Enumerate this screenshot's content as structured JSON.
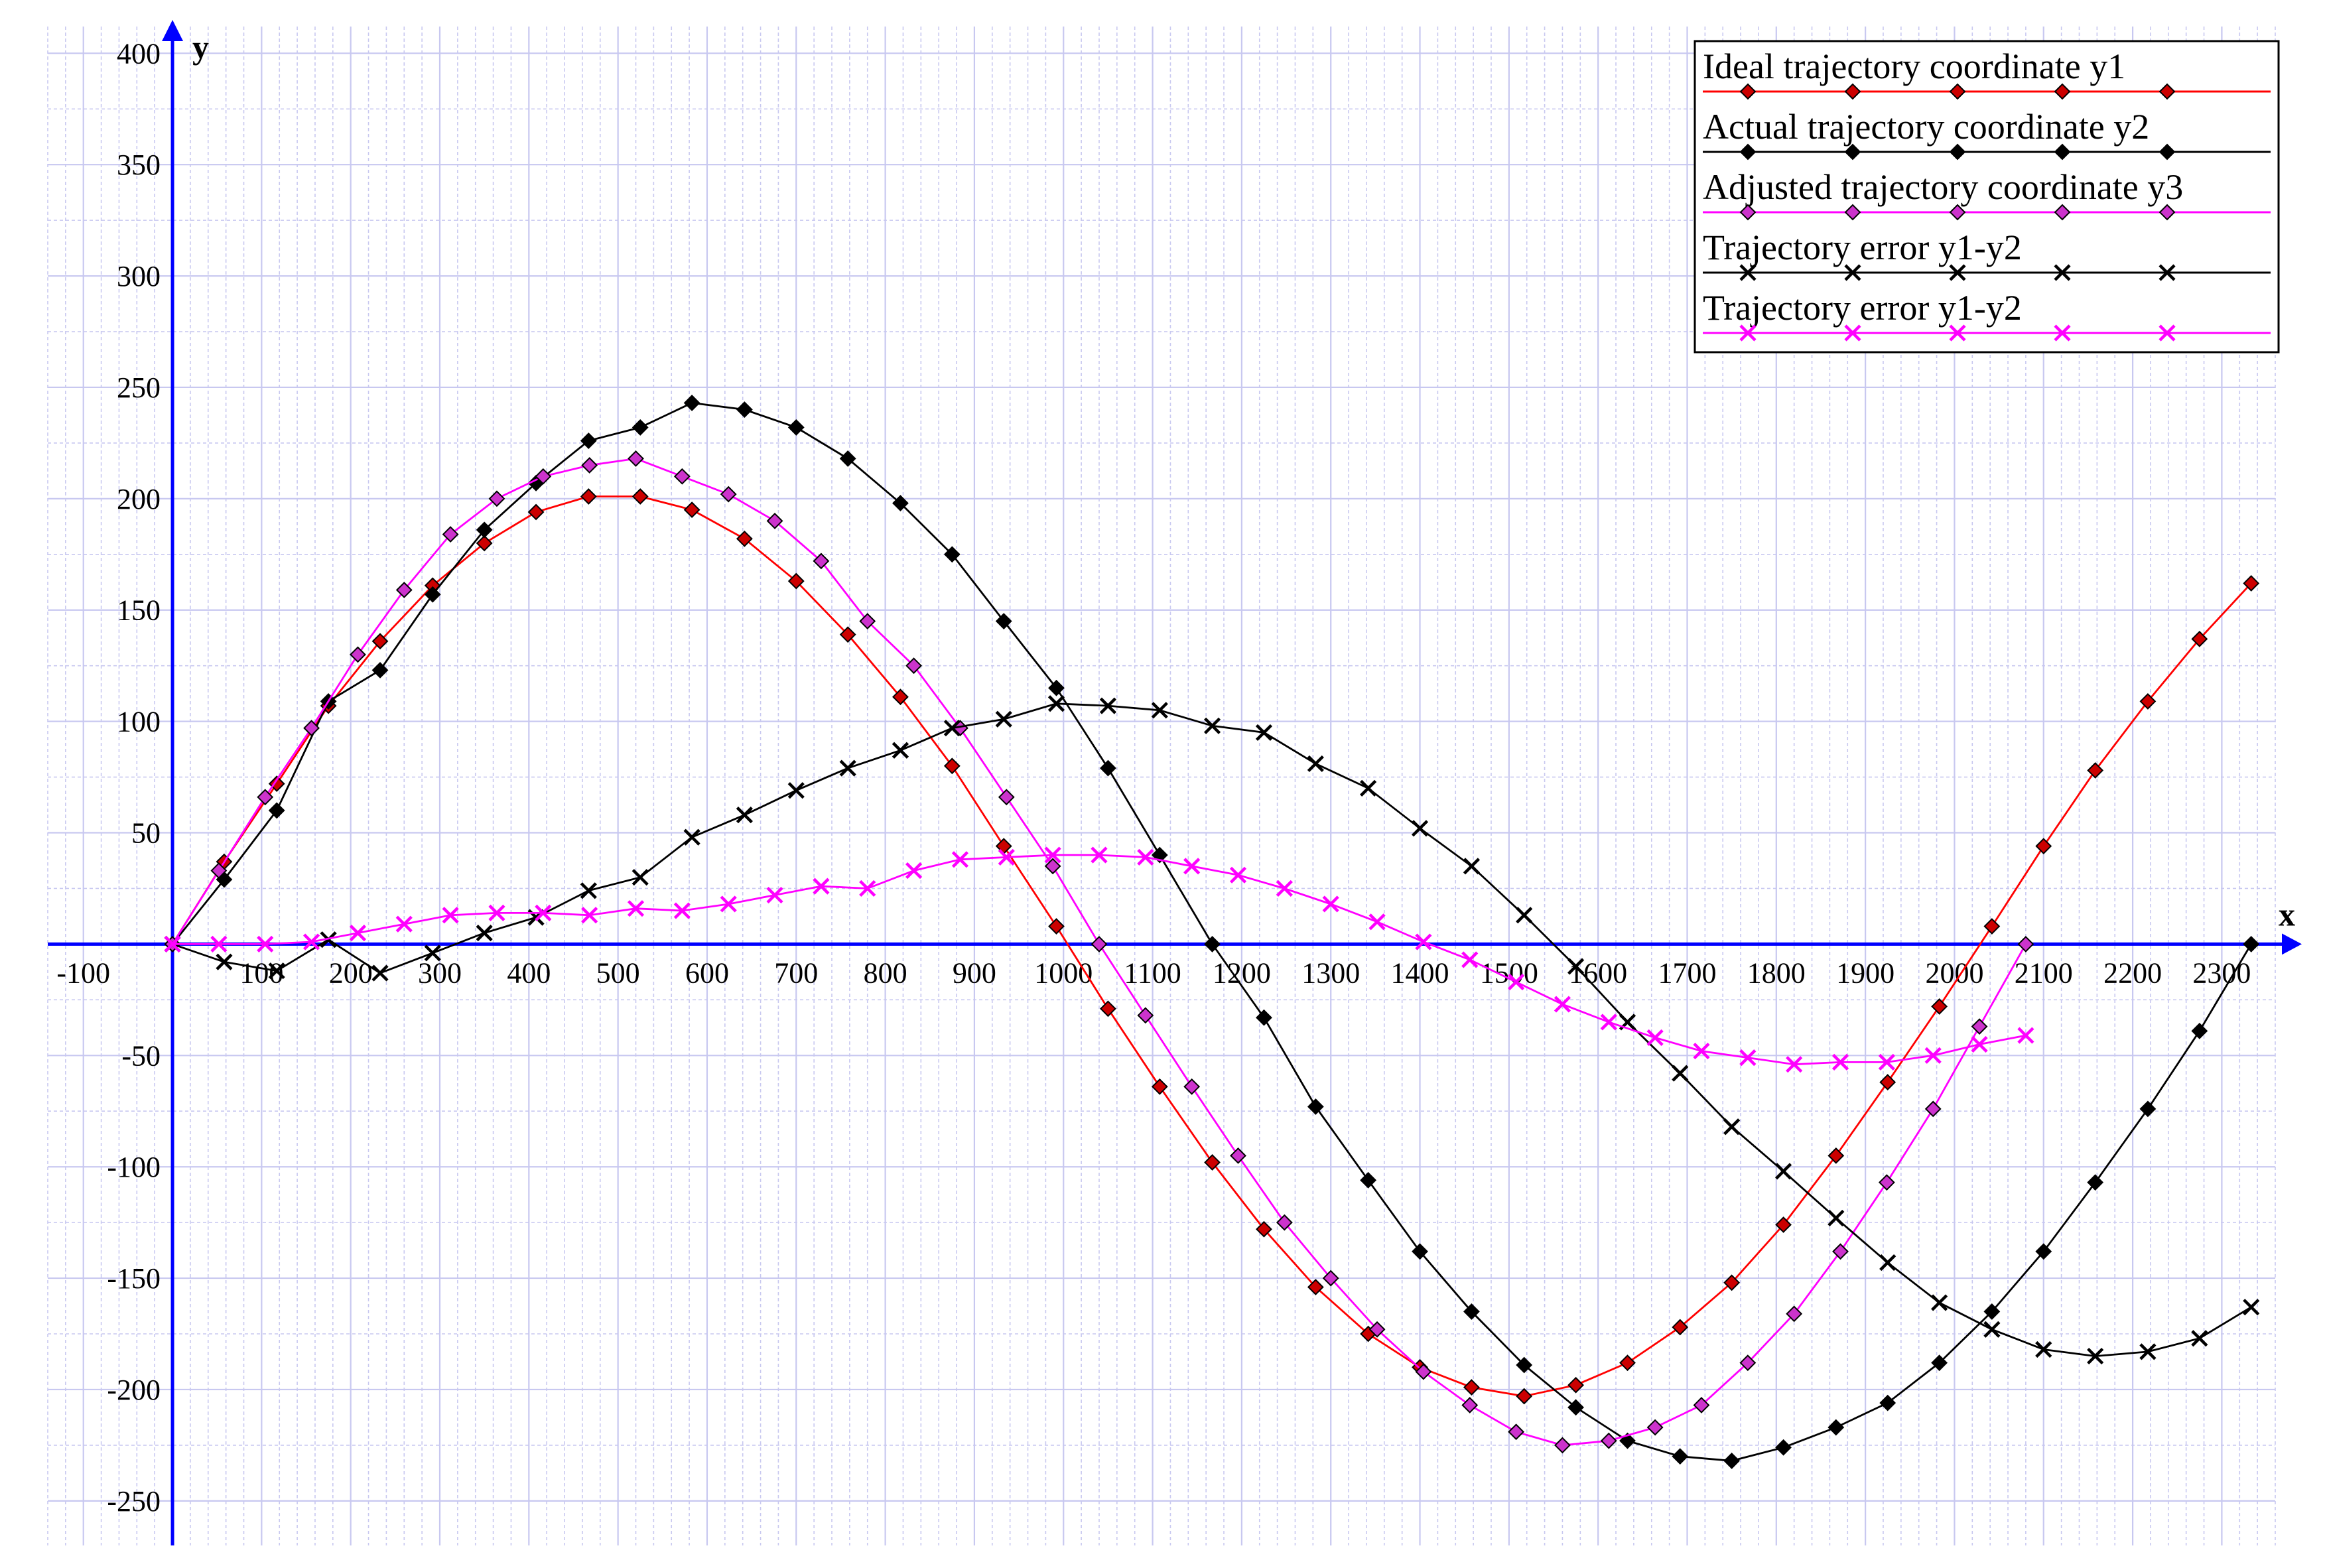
{
  "chart_data": {
    "type": "line",
    "xlabel": "x",
    "ylabel": "y",
    "xlim": [
      -140,
      2360
    ],
    "ylim": [
      -270,
      412
    ],
    "grid": true,
    "grid_minor_x": 20,
    "grid_minor_y": 25,
    "x_ticks": [
      -100,
      100,
      200,
      300,
      400,
      500,
      600,
      700,
      800,
      900,
      1000,
      1100,
      1200,
      1300,
      1400,
      1500,
      1600,
      1700,
      1800,
      1900,
      2000,
      2100,
      2200,
      2300
    ],
    "x_tick_labels": [
      "-100",
      "100",
      "200",
      "300",
      "400",
      "500",
      "600",
      "700",
      "800",
      "900",
      "1000",
      "1100",
      "1200",
      "1300",
      "1400",
      "1500",
      "1600",
      "1700",
      "1800",
      "1900",
      "2000",
      "2100",
      "2200",
      "2300"
    ],
    "y_ticks": [
      400,
      350,
      300,
      250,
      200,
      150,
      100,
      50,
      -50,
      -100,
      -150,
      -200,
      -250
    ],
    "y_tick_labels": [
      "400",
      "350",
      "300",
      "250",
      "200",
      "150",
      "100",
      "50",
      "-50",
      "-100",
      "-150",
      "-200",
      "-250"
    ],
    "legend_position": "top-right",
    "colors": {
      "axis": "#0000ff",
      "grid": "#c8c8f0",
      "red": "#ff0000",
      "red_marker": "#cc0000",
      "black": "#000000",
      "magenta": "#ff00ff",
      "magenta_marker": "#cc33cc"
    },
    "series": [
      {
        "name": "Ideal trajectory coordinate y1",
        "color": "#ff0000",
        "marker": "diamond",
        "marker_color": "#cc0000",
        "x": [
          0,
          58,
          117,
          175,
          233,
          292,
          350,
          408,
          467,
          525,
          583,
          642,
          700,
          758,
          817,
          875,
          933,
          992,
          1050,
          1108,
          1167,
          1225,
          1283,
          1342,
          1400,
          1458,
          1517,
          1575,
          1633,
          1692,
          1750,
          1808,
          1867,
          1925,
          1983,
          2042,
          2100,
          2158,
          2217,
          2275,
          2333
        ],
        "y": [
          0,
          37,
          72,
          107,
          136,
          161,
          180,
          194,
          201,
          201,
          195,
          182,
          163,
          139,
          111,
          80,
          44,
          8,
          -29,
          -64,
          -98,
          -128,
          -154,
          -175,
          -190,
          -199,
          -203,
          -198,
          -188,
          -172,
          -152,
          -126,
          -95,
          -62,
          -28,
          8,
          44,
          78,
          109,
          137,
          162
        ]
      },
      {
        "name": "Actual trajectory coordinate y2",
        "color": "#000000",
        "marker": "diamond",
        "marker_color": "#000000",
        "x": [
          0,
          58,
          117,
          175,
          233,
          292,
          350,
          408,
          467,
          525,
          583,
          642,
          700,
          758,
          817,
          875,
          933,
          992,
          1050,
          1108,
          1167,
          1225,
          1283,
          1342,
          1400,
          1458,
          1517,
          1575,
          1633,
          1692,
          1750,
          1808,
          1867,
          1925,
          1983,
          2042,
          2100,
          2158,
          2217,
          2275,
          2333
        ],
        "y": [
          0,
          29,
          60,
          109,
          123,
          157,
          186,
          207,
          226,
          232,
          243,
          240,
          232,
          218,
          198,
          175,
          145,
          115,
          79,
          40,
          0,
          -33,
          -73,
          -106,
          -138,
          -165,
          -189,
          -208,
          -223,
          -230,
          -232,
          -226,
          -217,
          -206,
          -188,
          -165,
          -138,
          -107,
          -74,
          -39,
          0
        ]
      },
      {
        "name": "Adjusted trajectory coordinate y3",
        "color": "#ff00ff",
        "marker": "diamond",
        "marker_color": "#cc33cc",
        "x": [
          0,
          52,
          104,
          156,
          208,
          260,
          312,
          364,
          416,
          468,
          520,
          572,
          624,
          676,
          728,
          780,
          832,
          884,
          936,
          988,
          1040,
          1092,
          1144,
          1196,
          1248,
          1300,
          1352,
          1404,
          1456,
          1508,
          1560,
          1612,
          1664,
          1716,
          1768,
          1820,
          1872,
          1924,
          1976,
          2028,
          2080
        ],
        "y": [
          0,
          33,
          66,
          97,
          130,
          159,
          184,
          200,
          210,
          215,
          218,
          210,
          202,
          190,
          172,
          145,
          125,
          97,
          66,
          35,
          0,
          -32,
          -64,
          -95,
          -125,
          -150,
          -173,
          -192,
          -207,
          -219,
          -225,
          -223,
          -217,
          -207,
          -188,
          -166,
          -138,
          -107,
          -74,
          -37,
          0
        ]
      },
      {
        "name": "Trajectory error y1-y2",
        "color": "#000000",
        "marker": "x",
        "marker_color": "#000000",
        "x": [
          0,
          58,
          117,
          175,
          233,
          292,
          350,
          408,
          467,
          525,
          583,
          642,
          700,
          758,
          817,
          875,
          933,
          992,
          1050,
          1108,
          1167,
          1225,
          1283,
          1342,
          1400,
          1458,
          1517,
          1575,
          1633,
          1692,
          1750,
          1808,
          1867,
          1925,
          1983,
          2042,
          2100,
          2158,
          2217,
          2275,
          2333
        ],
        "y": [
          0,
          -8,
          -12,
          2,
          -13,
          -4,
          5,
          12,
          24,
          30,
          48,
          58,
          69,
          79,
          87,
          97,
          101,
          108,
          107,
          105,
          98,
          95,
          81,
          70,
          52,
          35,
          13,
          -10,
          -35,
          -58,
          -82,
          -102,
          -123,
          -143,
          -161,
          -173,
          -182,
          -185,
          -183,
          -177,
          -163
        ]
      },
      {
        "name": "Trajectory error y1-y2",
        "color": "#ff00ff",
        "marker": "x",
        "marker_color": "#ff00ff",
        "x": [
          0,
          52,
          104,
          156,
          208,
          260,
          312,
          364,
          416,
          468,
          520,
          572,
          624,
          676,
          728,
          780,
          832,
          884,
          936,
          988,
          1040,
          1092,
          1144,
          1196,
          1248,
          1300,
          1352,
          1404,
          1456,
          1508,
          1560,
          1612,
          1664,
          1716,
          1768,
          1820,
          1872,
          1924,
          1976,
          2028,
          2080
        ],
        "y": [
          0,
          0,
          0,
          1,
          5,
          9,
          13,
          14,
          14,
          13,
          16,
          15,
          18,
          22,
          26,
          25,
          33,
          38,
          39,
          40,
          40,
          39,
          35,
          31,
          25,
          18,
          10,
          1,
          -7,
          -17,
          -27,
          -35,
          -42,
          -48,
          -51,
          -54,
          -53,
          -53,
          -50,
          -45,
          -41
        ]
      }
    ]
  }
}
